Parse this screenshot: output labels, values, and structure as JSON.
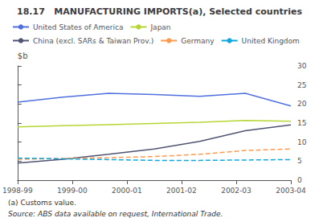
{
  "chart_data": {
    "type": "line",
    "title": "18.17   MANUFACTURING IMPORTS(a), Selected countries",
    "ylabel": "$b",
    "annotations": [
      "(a) Customs value.",
      "Source: ABS data available on request, International Trade."
    ],
    "x": [
      0,
      0.8333333333333334,
      1.6666666666666667,
      2.5,
      3.3333333333333335,
      4.166666666666667,
      5
    ],
    "xlim": [
      0,
      5
    ],
    "xticks": [
      {
        "value": 0,
        "label": "1998-99"
      },
      {
        "value": 1,
        "label": "1999-00"
      },
      {
        "value": 2,
        "label": "2000-01"
      },
      {
        "value": 3,
        "label": "2001-02"
      },
      {
        "value": 4,
        "label": "2002-03"
      },
      {
        "value": 5,
        "label": "2003-04"
      }
    ],
    "ylim": [
      0,
      30
    ],
    "yticks": [
      0,
      5,
      10,
      15,
      20,
      25,
      30
    ],
    "grid": false,
    "legend": "upper left",
    "series": [
      {
        "name": "United States of America",
        "values": [
          20.5,
          21.8,
          22.8,
          22.5,
          22.0,
          22.8,
          19.5
        ],
        "line_style": "solid"
      },
      {
        "name": "Japan",
        "values": [
          14.0,
          14.3,
          14.6,
          14.9,
          15.2,
          15.7,
          15.5
        ],
        "line_style": "solid"
      },
      {
        "name": "China (excl. SARs & Taiwan Prov.)",
        "values": [
          4.5,
          5.5,
          6.8,
          8.2,
          10.2,
          13.0,
          14.5
        ],
        "line_style": "solid"
      },
      {
        "name": "Germany",
        "values": [
          5.5,
          5.7,
          5.9,
          6.2,
          6.8,
          7.8,
          8.2
        ],
        "line_style": "dashed"
      },
      {
        "name": "United Kingdom",
        "values": [
          5.8,
          5.6,
          5.4,
          5.2,
          5.2,
          5.3,
          5.4
        ],
        "line_style": "dashed"
      }
    ]
  }
}
